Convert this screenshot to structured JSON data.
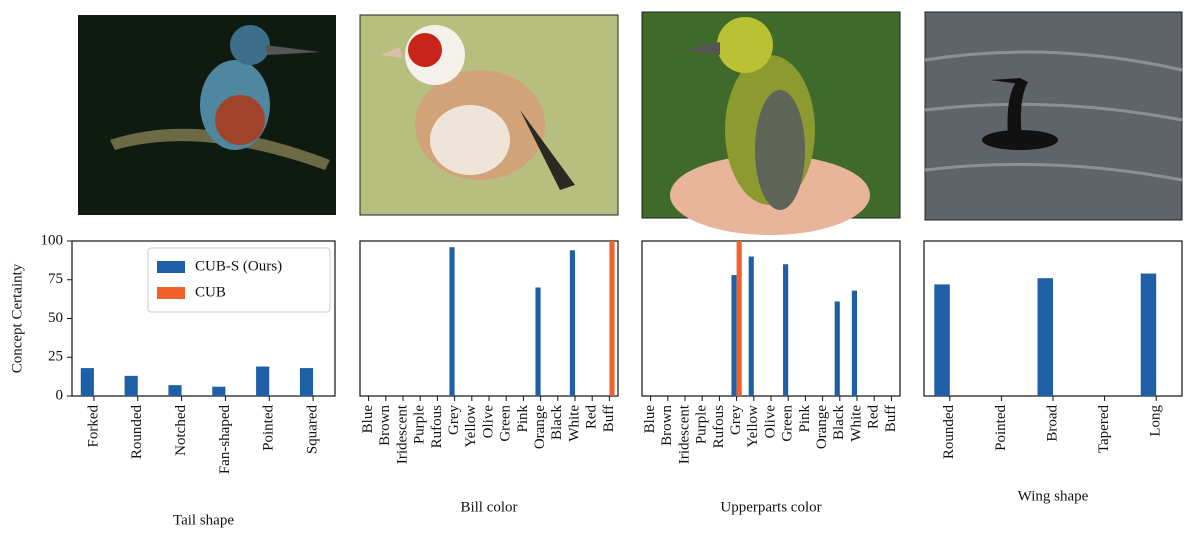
{
  "chart_data": [
    {
      "type": "bar",
      "x_label": "Tail shape",
      "y_label": "Concept Certainty",
      "categories": [
        "Forked",
        "Rounded",
        "Notched",
        "Fan-shaped",
        "Pointed",
        "Squared"
      ],
      "series": [
        {
          "name": "CUB-S (Ours)",
          "color": "#1f5fa6",
          "values": [
            18,
            13,
            7,
            6,
            19,
            18
          ]
        },
        {
          "name": "CUB",
          "color": "#f0622a",
          "values": [
            0,
            0,
            0,
            0,
            0,
            0
          ]
        }
      ],
      "ylim": [
        0,
        100
      ],
      "yticks": [
        0,
        25,
        50,
        75,
        100
      ],
      "legend": "upper right"
    },
    {
      "type": "bar",
      "x_label": "Bill color",
      "categories": [
        "Blue",
        "Brown",
        "Iridescent",
        "Purple",
        "Rufous",
        "Grey",
        "Yellow",
        "Olive",
        "Green",
        "Pink",
        "Orange",
        "Black",
        "White",
        "Red",
        "Buff"
      ],
      "series": [
        {
          "color": "#1f5fa6",
          "values": [
            0,
            0,
            0,
            0,
            0,
            96,
            0,
            0,
            0,
            0,
            70,
            0,
            94,
            0,
            0
          ]
        },
        {
          "color": "#f0622a",
          "values": [
            0,
            0,
            0,
            0,
            0,
            0,
            0,
            0,
            0,
            0,
            0,
            0,
            0,
            0,
            100
          ]
        }
      ],
      "ylim": [
        0,
        100
      ]
    },
    {
      "type": "bar",
      "x_label": "Upperparts color",
      "categories": [
        "Blue",
        "Brown",
        "Iridescent",
        "Purple",
        "Rufous",
        "Grey",
        "Yellow",
        "Olive",
        "Green",
        "Pink",
        "Orange",
        "Black",
        "White",
        "Red",
        "Buff"
      ],
      "series": [
        {
          "color": "#1f5fa6",
          "values": [
            0,
            0,
            0,
            0,
            0,
            78,
            90,
            0,
            85,
            0,
            0,
            61,
            68,
            0,
            0
          ]
        },
        {
          "color": "#f0622a",
          "values": [
            0,
            0,
            0,
            0,
            0,
            100,
            0,
            0,
            0,
            0,
            0,
            0,
            0,
            0,
            0
          ]
        }
      ],
      "ylim": [
        0,
        100
      ]
    },
    {
      "type": "bar",
      "x_label": "Wing shape",
      "categories": [
        "Rounded",
        "Pointed",
        "Broad",
        "Tapered",
        "Long"
      ],
      "series": [
        {
          "color": "#1f5fa6",
          "values": [
            72,
            0,
            76,
            0,
            79
          ]
        },
        {
          "color": "#f0622a",
          "values": [
            0,
            0,
            0,
            0,
            0
          ]
        }
      ],
      "ylim": [
        0,
        100
      ]
    }
  ]
}
